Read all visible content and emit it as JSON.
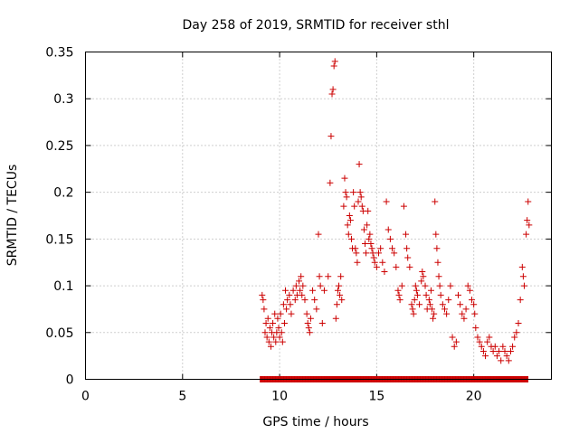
{
  "chart_data": {
    "type": "scatter",
    "title": "Day 258 of 2019, SRMTID for receiver sthl",
    "xlabel": "GPS time / hours",
    "ylabel": "SRMTID / TECUs",
    "xlim": [
      0,
      24
    ],
    "ylim": [
      0,
      0.35
    ],
    "x_ticks": [
      0,
      5,
      10,
      15,
      20
    ],
    "x_tick_labels": [
      "0",
      "5",
      "10",
      "15",
      "20"
    ],
    "y_ticks": [
      0,
      0.05,
      0.1,
      0.15,
      0.2,
      0.25,
      0.3,
      0.35
    ],
    "y_tick_labels": [
      "0",
      "0.05",
      "0.1",
      "0.15",
      "0.2",
      "0.25",
      "0.3",
      "0.35"
    ],
    "grid": true,
    "marker": "plus",
    "color": "#cc0000",
    "series": [
      {
        "name": "SRMTID",
        "points": [
          [
            9.1,
            0.09
          ],
          [
            9.15,
            0.085
          ],
          [
            9.2,
            0.075
          ],
          [
            9.25,
            0.05
          ],
          [
            9.3,
            0.06
          ],
          [
            9.35,
            0.045
          ],
          [
            9.4,
            0.065
          ],
          [
            9.45,
            0.04
          ],
          [
            9.5,
            0.055
          ],
          [
            9.55,
            0.035
          ],
          [
            9.6,
            0.05
          ],
          [
            9.65,
            0.06
          ],
          [
            9.7,
            0.045
          ],
          [
            9.75,
            0.07
          ],
          [
            9.8,
            0.04
          ],
          [
            9.85,
            0.05
          ],
          [
            9.9,
            0.065
          ],
          [
            9.95,
            0.055
          ],
          [
            10.0,
            0.045
          ],
          [
            10.05,
            0.07
          ],
          [
            10.1,
            0.05
          ],
          [
            10.15,
            0.04
          ],
          [
            10.2,
            0.08
          ],
          [
            10.25,
            0.06
          ],
          [
            10.3,
            0.095
          ],
          [
            10.35,
            0.075
          ],
          [
            10.4,
            0.085
          ],
          [
            10.5,
            0.09
          ],
          [
            10.55,
            0.08
          ],
          [
            10.6,
            0.07
          ],
          [
            10.7,
            0.095
          ],
          [
            10.8,
            0.085
          ],
          [
            10.85,
            0.1
          ],
          [
            10.9,
            0.09
          ],
          [
            11.0,
            0.105
          ],
          [
            11.05,
            0.095
          ],
          [
            11.1,
            0.11
          ],
          [
            11.15,
            0.09
          ],
          [
            11.2,
            0.1
          ],
          [
            11.3,
            0.085
          ],
          [
            11.4,
            0.07
          ],
          [
            11.45,
            0.06
          ],
          [
            11.5,
            0.055
          ],
          [
            11.55,
            0.05
          ],
          [
            11.6,
            0.065
          ],
          [
            11.7,
            0.095
          ],
          [
            11.8,
            0.085
          ],
          [
            11.9,
            0.075
          ],
          [
            12.0,
            0.155
          ],
          [
            12.05,
            0.11
          ],
          [
            12.1,
            0.1
          ],
          [
            12.2,
            0.06
          ],
          [
            12.3,
            0.095
          ],
          [
            12.5,
            0.11
          ],
          [
            12.6,
            0.21
          ],
          [
            12.65,
            0.26
          ],
          [
            12.7,
            0.305
          ],
          [
            12.75,
            0.31
          ],
          [
            12.8,
            0.335
          ],
          [
            12.85,
            0.34
          ],
          [
            12.9,
            0.065
          ],
          [
            12.95,
            0.08
          ],
          [
            13.0,
            0.095
          ],
          [
            13.05,
            0.1
          ],
          [
            13.1,
            0.09
          ],
          [
            13.15,
            0.11
          ],
          [
            13.2,
            0.085
          ],
          [
            13.3,
            0.185
          ],
          [
            13.35,
            0.215
          ],
          [
            13.4,
            0.2
          ],
          [
            13.45,
            0.195
          ],
          [
            13.5,
            0.165
          ],
          [
            13.55,
            0.155
          ],
          [
            13.6,
            0.175
          ],
          [
            13.65,
            0.17
          ],
          [
            13.7,
            0.15
          ],
          [
            13.75,
            0.14
          ],
          [
            13.8,
            0.2
          ],
          [
            13.85,
            0.185
          ],
          [
            13.9,
            0.14
          ],
          [
            13.95,
            0.135
          ],
          [
            14.0,
            0.125
          ],
          [
            14.05,
            0.19
          ],
          [
            14.1,
            0.23
          ],
          [
            14.15,
            0.2
          ],
          [
            14.2,
            0.195
          ],
          [
            14.25,
            0.185
          ],
          [
            14.3,
            0.18
          ],
          [
            14.35,
            0.16
          ],
          [
            14.4,
            0.145
          ],
          [
            14.45,
            0.135
          ],
          [
            14.5,
            0.165
          ],
          [
            14.55,
            0.18
          ],
          [
            14.6,
            0.15
          ],
          [
            14.65,
            0.155
          ],
          [
            14.7,
            0.145
          ],
          [
            14.75,
            0.14
          ],
          [
            14.8,
            0.135
          ],
          [
            14.85,
            0.13
          ],
          [
            14.9,
            0.125
          ],
          [
            15.0,
            0.12
          ],
          [
            15.1,
            0.135
          ],
          [
            15.2,
            0.14
          ],
          [
            15.3,
            0.125
          ],
          [
            15.4,
            0.115
          ],
          [
            15.5,
            0.19
          ],
          [
            15.6,
            0.16
          ],
          [
            15.7,
            0.15
          ],
          [
            15.8,
            0.14
          ],
          [
            15.9,
            0.135
          ],
          [
            16.0,
            0.12
          ],
          [
            16.1,
            0.095
          ],
          [
            16.15,
            0.09
          ],
          [
            16.2,
            0.085
          ],
          [
            16.3,
            0.1
          ],
          [
            16.4,
            0.185
          ],
          [
            16.5,
            0.155
          ],
          [
            16.55,
            0.14
          ],
          [
            16.6,
            0.13
          ],
          [
            16.7,
            0.12
          ],
          [
            16.8,
            0.08
          ],
          [
            16.85,
            0.075
          ],
          [
            16.9,
            0.07
          ],
          [
            16.95,
            0.085
          ],
          [
            17.0,
            0.1
          ],
          [
            17.05,
            0.095
          ],
          [
            17.1,
            0.09
          ],
          [
            17.2,
            0.08
          ],
          [
            17.3,
            0.105
          ],
          [
            17.35,
            0.115
          ],
          [
            17.4,
            0.11
          ],
          [
            17.5,
            0.1
          ],
          [
            17.55,
            0.09
          ],
          [
            17.6,
            0.075
          ],
          [
            17.7,
            0.085
          ],
          [
            17.75,
            0.08
          ],
          [
            17.8,
            0.095
          ],
          [
            17.85,
            0.075
          ],
          [
            17.9,
            0.065
          ],
          [
            17.95,
            0.07
          ],
          [
            18.0,
            0.19
          ],
          [
            18.05,
            0.155
          ],
          [
            18.1,
            0.14
          ],
          [
            18.15,
            0.125
          ],
          [
            18.2,
            0.11
          ],
          [
            18.25,
            0.1
          ],
          [
            18.3,
            0.09
          ],
          [
            18.4,
            0.08
          ],
          [
            18.5,
            0.075
          ],
          [
            18.6,
            0.07
          ],
          [
            18.7,
            0.085
          ],
          [
            18.8,
            0.1
          ],
          [
            18.9,
            0.045
          ],
          [
            19.0,
            0.035
          ],
          [
            19.1,
            0.04
          ],
          [
            19.2,
            0.09
          ],
          [
            19.3,
            0.08
          ],
          [
            19.4,
            0.07
          ],
          [
            19.5,
            0.065
          ],
          [
            19.6,
            0.075
          ],
          [
            19.7,
            0.1
          ],
          [
            19.8,
            0.095
          ],
          [
            19.9,
            0.085
          ],
          [
            20.0,
            0.08
          ],
          [
            20.05,
            0.07
          ],
          [
            20.1,
            0.055
          ],
          [
            20.2,
            0.045
          ],
          [
            20.3,
            0.04
          ],
          [
            20.4,
            0.035
          ],
          [
            20.5,
            0.03
          ],
          [
            20.6,
            0.025
          ],
          [
            20.7,
            0.04
          ],
          [
            20.8,
            0.045
          ],
          [
            20.9,
            0.035
          ],
          [
            21.0,
            0.03
          ],
          [
            21.1,
            0.035
          ],
          [
            21.2,
            0.025
          ],
          [
            21.3,
            0.03
          ],
          [
            21.4,
            0.02
          ],
          [
            21.5,
            0.035
          ],
          [
            21.6,
            0.03
          ],
          [
            21.7,
            0.025
          ],
          [
            21.8,
            0.02
          ],
          [
            21.9,
            0.03
          ],
          [
            22.0,
            0.035
          ],
          [
            22.1,
            0.045
          ],
          [
            22.2,
            0.05
          ],
          [
            22.3,
            0.06
          ],
          [
            22.4,
            0.085
          ],
          [
            22.5,
            0.12
          ],
          [
            22.55,
            0.11
          ],
          [
            22.6,
            0.1
          ],
          [
            22.7,
            0.155
          ],
          [
            22.75,
            0.17
          ],
          [
            22.8,
            0.19
          ],
          [
            22.85,
            0.165
          ]
        ]
      }
    ],
    "zero_line": {
      "x_from": 9.0,
      "x_to": 22.8,
      "y": 0
    }
  }
}
